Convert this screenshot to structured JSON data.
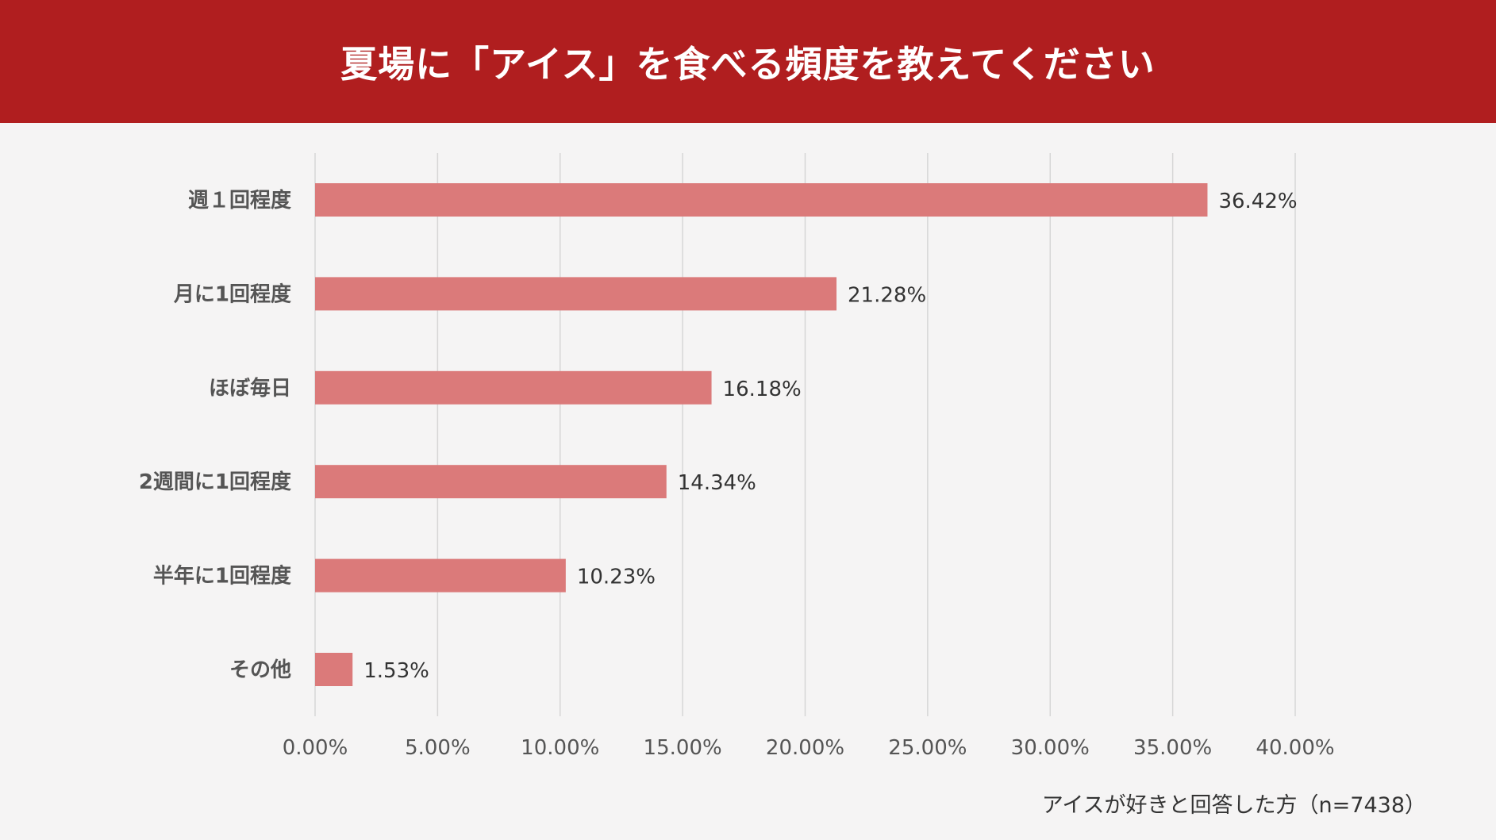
{
  "header": {
    "title": "夏場に「アイス」を食べる頻度を教えてください"
  },
  "footnote": "アイスが好きと回答した方（n=7438）",
  "colors": {
    "header_bg": "#b01e1f",
    "bar": "#db7a7a",
    "grid": "#d6d6d6",
    "background": "#f5f4f4"
  },
  "chart_data": {
    "type": "bar",
    "orientation": "horizontal",
    "categories": [
      "週１回程度",
      "月に1回程度",
      "ほぼ毎日",
      "2週間に1回程度",
      "半年に1回程度",
      "その他"
    ],
    "values": [
      36.42,
      21.28,
      16.18,
      14.34,
      10.23,
      1.53
    ],
    "value_labels": [
      "36.42%",
      "21.28%",
      "16.18%",
      "14.34%",
      "10.23%",
      "1.53%"
    ],
    "xlim": [
      0,
      40
    ],
    "x_ticks": [
      0,
      5,
      10,
      15,
      20,
      25,
      30,
      35,
      40
    ],
    "x_tick_labels": [
      "0.00%",
      "5.00%",
      "10.00%",
      "15.00%",
      "20.00%",
      "25.00%",
      "30.00%",
      "35.00%",
      "40.00%"
    ],
    "grid": true,
    "legend": "none"
  }
}
